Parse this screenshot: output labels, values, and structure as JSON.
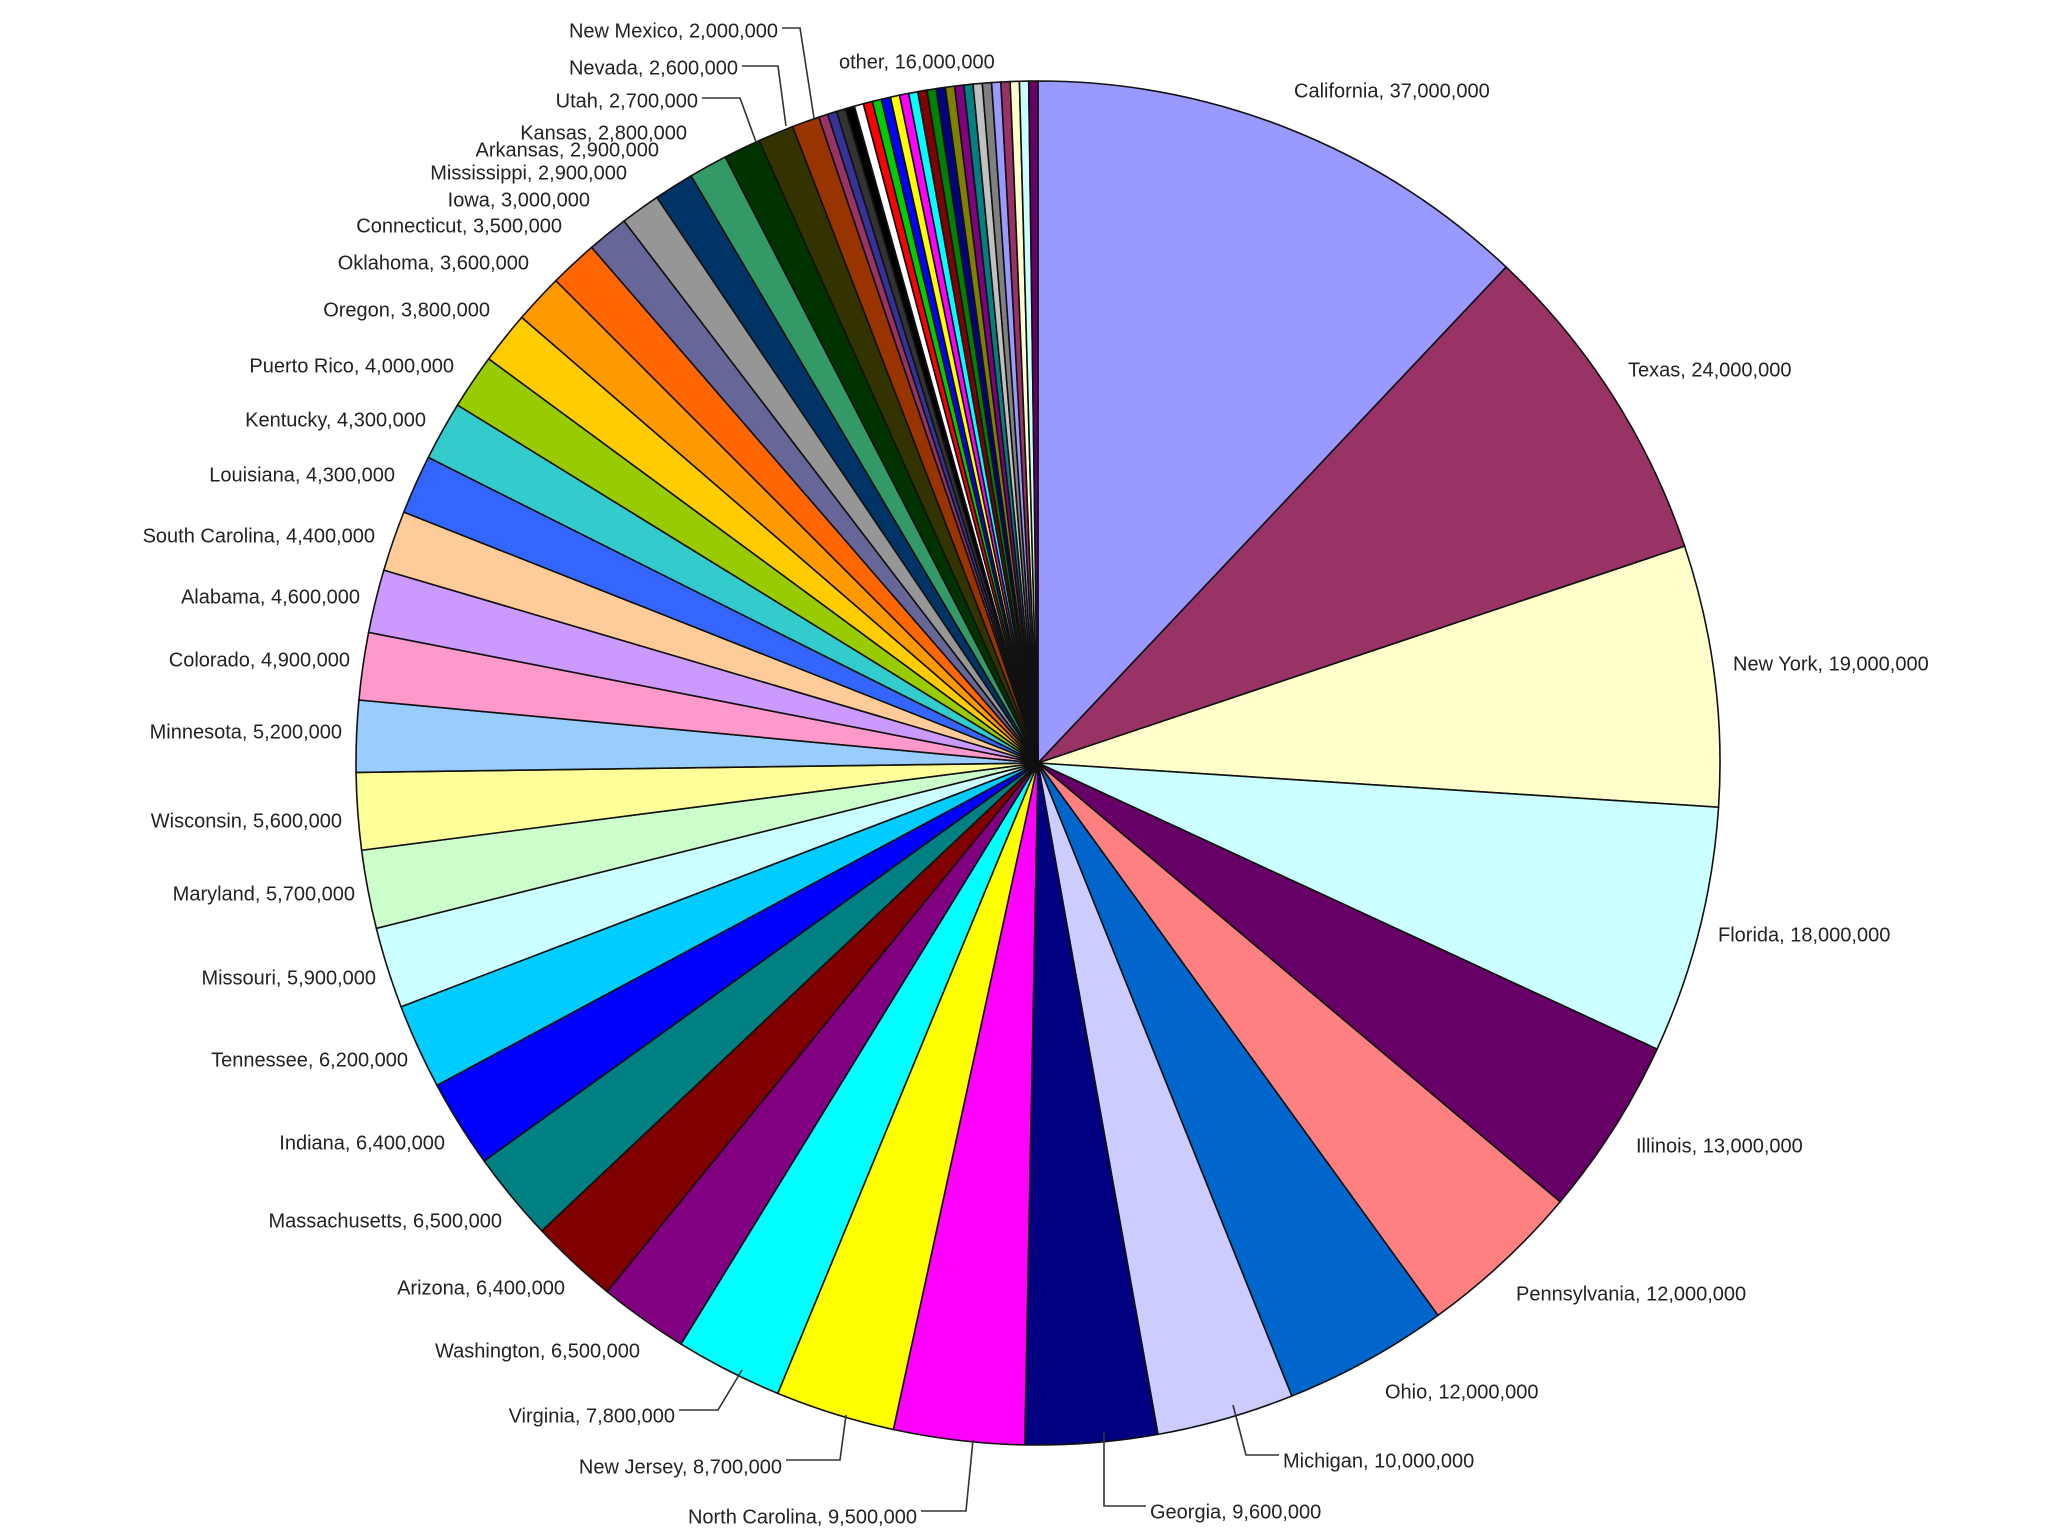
{
  "chart_data": {
    "type": "pie",
    "title": "",
    "start": "top",
    "direction": "clockwise",
    "slices": [
      {
        "label": "California",
        "value_text": "37,000,000",
        "value": 37000000,
        "color": "#9999ff"
      },
      {
        "label": "Texas",
        "value_text": "24,000,000",
        "value": 24000000,
        "color": "#993366"
      },
      {
        "label": "New York",
        "value_text": "19,000,000",
        "value": 19000000,
        "color": "#ffffcc"
      },
      {
        "label": "Florida",
        "value_text": "18,000,000",
        "value": 18000000,
        "color": "#ccffff"
      },
      {
        "label": "Illinois",
        "value_text": "13,000,000",
        "value": 13000000,
        "color": "#660066"
      },
      {
        "label": "Pennsylvania",
        "value_text": "12,000,000",
        "value": 12000000,
        "color": "#ff8080"
      },
      {
        "label": "Ohio",
        "value_text": "12,000,000",
        "value": 12000000,
        "color": "#0066cc"
      },
      {
        "label": "Michigan",
        "value_text": "10,000,000",
        "value": 10000000,
        "color": "#ccccff"
      },
      {
        "label": "Georgia",
        "value_text": "9,600,000",
        "value": 9600000,
        "color": "#000080"
      },
      {
        "label": "North Carolina",
        "value_text": "9,500,000",
        "value": 9500000,
        "color": "#ff00ff"
      },
      {
        "label": "New Jersey",
        "value_text": "8,700,000",
        "value": 8700000,
        "color": "#ffff00"
      },
      {
        "label": "Virginia",
        "value_text": "7,800,000",
        "value": 7800000,
        "color": "#00ffff"
      },
      {
        "label": "Washington",
        "value_text": "6,500,000",
        "value": 6500000,
        "color": "#800080"
      },
      {
        "label": "Arizona",
        "value_text": "6,400,000",
        "value": 6400000,
        "color": "#800000"
      },
      {
        "label": "Massachusetts",
        "value_text": "6,500,000",
        "value": 6500000,
        "color": "#008080"
      },
      {
        "label": "Indiana",
        "value_text": "6,400,000",
        "value": 6400000,
        "color": "#0000ff"
      },
      {
        "label": "Tennessee",
        "value_text": "6,200,000",
        "value": 6200000,
        "color": "#00ccff"
      },
      {
        "label": "Missouri",
        "value_text": "5,900,000",
        "value": 5900000,
        "color": "#ccffff"
      },
      {
        "label": "Maryland",
        "value_text": "5,700,000",
        "value": 5700000,
        "color": "#ccffcc"
      },
      {
        "label": "Wisconsin",
        "value_text": "5,600,000",
        "value": 5600000,
        "color": "#ffff99"
      },
      {
        "label": "Minnesota",
        "value_text": "5,200,000",
        "value": 5200000,
        "color": "#99ccff"
      },
      {
        "label": "Colorado",
        "value_text": "4,900,000",
        "value": 4900000,
        "color": "#ff99cc"
      },
      {
        "label": "Alabama",
        "value_text": "4,600,000",
        "value": 4600000,
        "color": "#cc99ff"
      },
      {
        "label": "South Carolina",
        "value_text": "4,400,000",
        "value": 4400000,
        "color": "#ffcc99"
      },
      {
        "label": "Louisiana",
        "value_text": "4,300,000",
        "value": 4300000,
        "color": "#3366ff"
      },
      {
        "label": "Kentucky",
        "value_text": "4,300,000",
        "value": 4300000,
        "color": "#33cccc"
      },
      {
        "label": "Puerto Rico",
        "value_text": "4,000,000",
        "value": 4000000,
        "color": "#99cc00"
      },
      {
        "label": "Oregon",
        "value_text": "3,800,000",
        "value": 3800000,
        "color": "#ffcc00"
      },
      {
        "label": "Oklahoma",
        "value_text": "3,600,000",
        "value": 3600000,
        "color": "#ff9900"
      },
      {
        "label": "Connecticut",
        "value_text": "3,500,000",
        "value": 3500000,
        "color": "#ff6600"
      },
      {
        "label": "Iowa",
        "value_text": "3,000,000",
        "value": 3000000,
        "color": "#666699"
      },
      {
        "label": "Mississippi",
        "value_text": "2,900,000",
        "value": 2900000,
        "color": "#969696"
      },
      {
        "label": "Arkansas",
        "value_text": "2,900,000",
        "value": 2900000,
        "color": "#003366"
      },
      {
        "label": "Kansas",
        "value_text": "2,800,000",
        "value": 2800000,
        "color": "#339966"
      },
      {
        "label": "Utah",
        "value_text": "2,700,000",
        "value": 2700000,
        "color": "#003300"
      },
      {
        "label": "Nevada",
        "value_text": "2,600,000",
        "value": 2600000,
        "color": "#333300"
      },
      {
        "label": "New Mexico",
        "value_text": "2,000,000",
        "value": 2000000,
        "color": "#993300"
      },
      {
        "label": "other",
        "value_text": "16,000,000",
        "value": 16000000,
        "color": "#333399"
      }
    ],
    "other_stripe_colors": [
      "#993366",
      "#333399",
      "#333333",
      "#000000",
      "#ffffff",
      "#ff0000",
      "#00cc00",
      "#0000ff",
      "#ffff00",
      "#ff00ff",
      "#00ffff",
      "#800000",
      "#008000",
      "#000080",
      "#808000",
      "#800080",
      "#008080",
      "#c0c0c0",
      "#808080",
      "#9999ff",
      "#993366",
      "#ffffcc",
      "#ccffff",
      "#660066"
    ]
  }
}
